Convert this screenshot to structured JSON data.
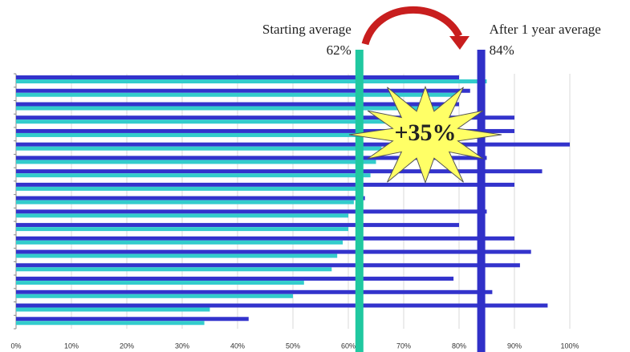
{
  "chart_data": {
    "type": "hbar",
    "xlim": [
      0,
      100
    ],
    "xticks": [
      {
        "value": 0,
        "label": "0%"
      },
      {
        "value": 10,
        "label": "10%"
      },
      {
        "value": 20,
        "label": "20%"
      },
      {
        "value": 30,
        "label": "30%"
      },
      {
        "value": 40,
        "label": "40%"
      },
      {
        "value": 50,
        "label": "50%"
      },
      {
        "value": 60,
        "label": "60%"
      },
      {
        "value": 70,
        "label": "70%"
      },
      {
        "value": 80,
        "label": "80%"
      },
      {
        "value": 90,
        "label": "90%"
      },
      {
        "value": 100,
        "label": "100%"
      }
    ],
    "grid": true,
    "series": [
      {
        "color": "#3333cc",
        "values": [
          80,
          82,
          80,
          90,
          90,
          100,
          85,
          95,
          90,
          63,
          85,
          80,
          90,
          93,
          91,
          79,
          86,
          96,
          42
        ]
      },
      {
        "color": "#33cccc",
        "values": [
          85,
          80,
          78,
          75,
          70,
          66,
          65,
          64,
          62,
          61,
          60,
          60,
          59,
          58,
          57,
          52,
          50,
          35,
          34
        ]
      }
    ],
    "annotations": [
      {
        "text": "Starting average",
        "value": 62,
        "label": "62%",
        "color": "#20c8a0"
      },
      {
        "text": "After 1 year average",
        "value": 84,
        "label": "84%",
        "color": "#3030c8"
      }
    ],
    "callout": "+35%"
  }
}
